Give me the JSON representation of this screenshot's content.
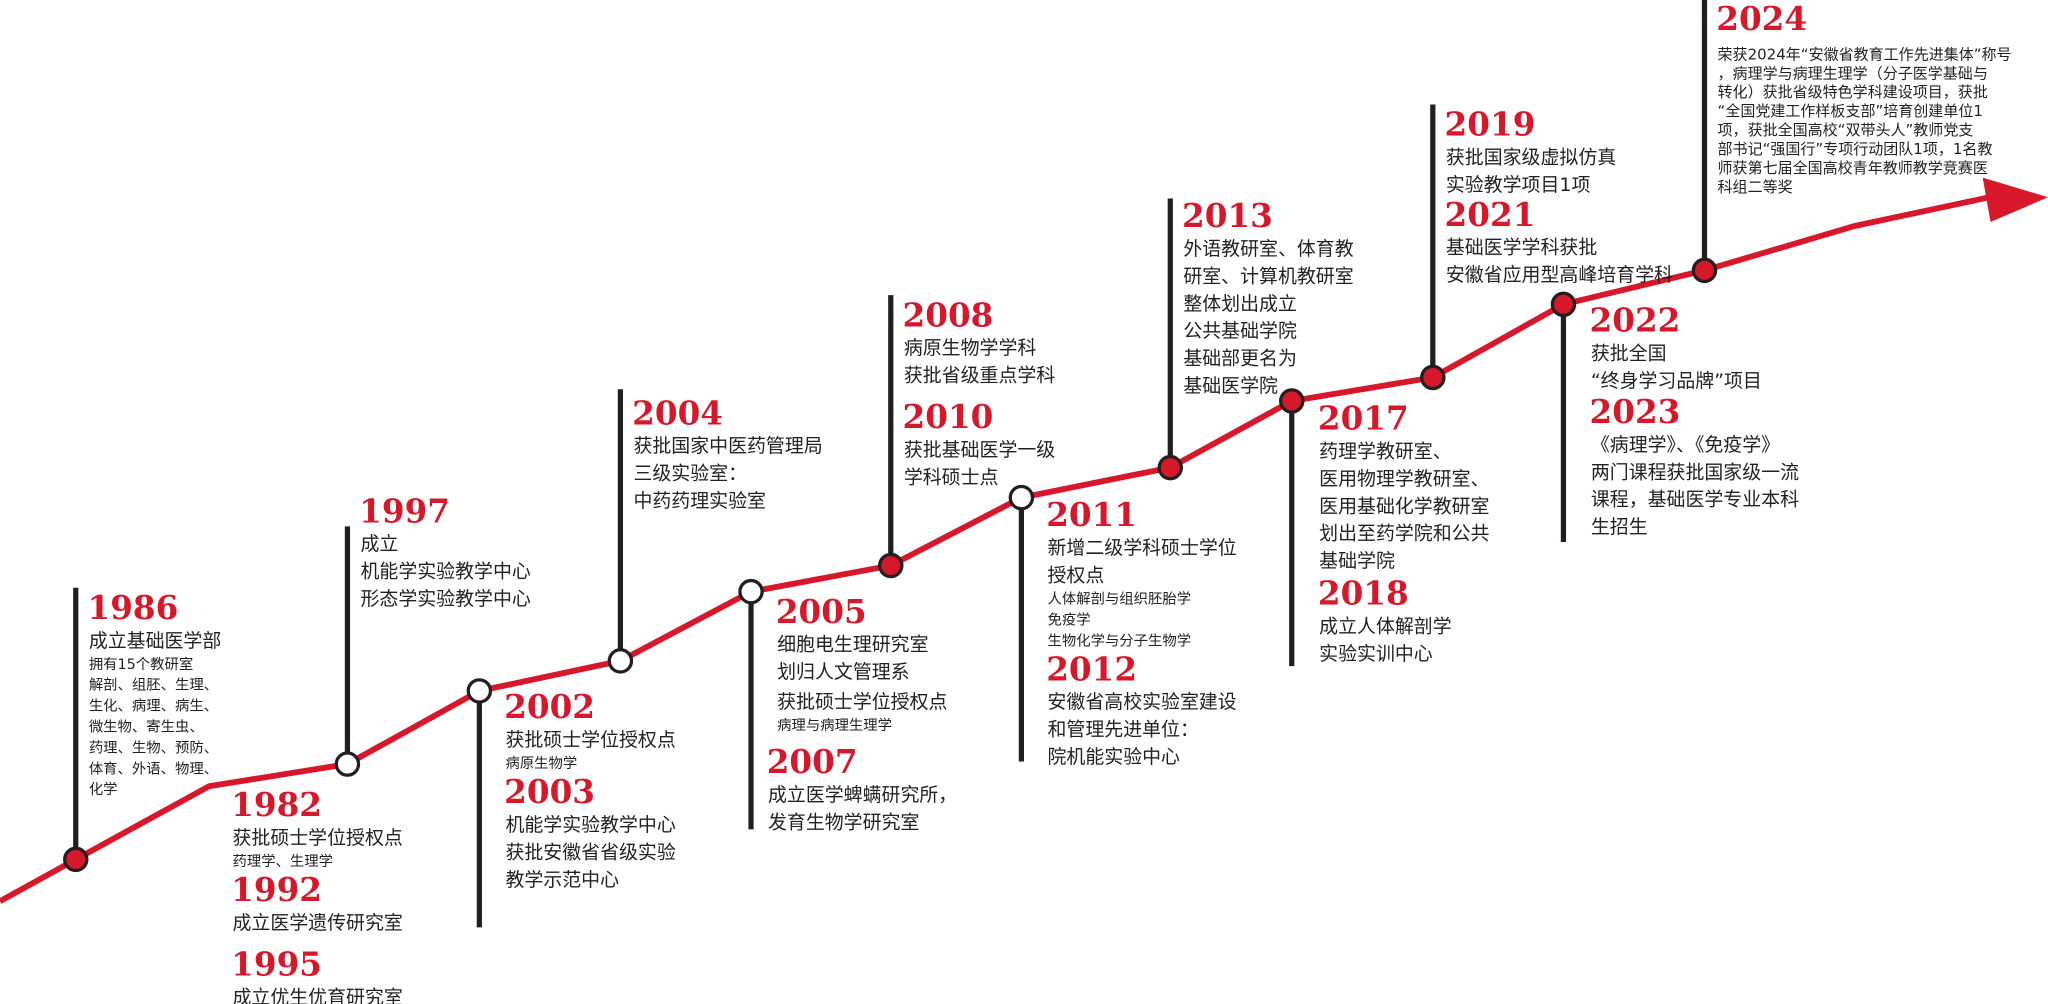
{
  "groups": [
    {
      "entries": [
        {
          "year": "1986",
          "text": [
            "成立基础医学部"
          ],
          "note": [
            "拥有15个教研室",
            "解剖、组胚、生理、",
            "生化、病理、病生、",
            "微生物、寄生虫、",
            "药理、生物、预防、",
            "体育、外语、物理、",
            "化学"
          ]
        }
      ]
    },
    {
      "entries": [
        {
          "year": "1982",
          "text": [
            "获批硕士学位授权点"
          ],
          "note": [
            "药理学、生理学"
          ]
        },
        {
          "year": "1992",
          "text": [
            "成立医学遗传研究室"
          ]
        },
        {
          "year": "1995",
          "text": [
            "成立优生优育研究室"
          ]
        }
      ]
    },
    {
      "entries": [
        {
          "year": "1997",
          "text": [
            "成立",
            "机能学实验教学中心",
            "形态学实验教学中心"
          ]
        }
      ]
    },
    {
      "entries": [
        {
          "year": "2002",
          "text": [
            "获批硕士学位授权点"
          ],
          "note": [
            "病原生物学"
          ]
        },
        {
          "year": "2003",
          "text": [
            "机能学实验教学中心",
            "获批安徽省省级实验",
            "教学示范中心"
          ]
        }
      ]
    },
    {
      "entries": [
        {
          "year": "2004",
          "text": [
            "获批国家中医药管理局",
            "三级实验室：",
            "中药药理实验室"
          ]
        }
      ]
    },
    {
      "entries": [
        {
          "year": "2005",
          "text": [
            "细胞电生理研究室",
            "划归人文管理系"
          ]
        },
        {
          "text": [
            "获批硕士学位授权点"
          ],
          "note": [
            "病理与病理生理学"
          ]
        },
        {
          "year": "2007",
          "text": [
            "成立医学蜱螨研究所，",
            "发育生物学研究室"
          ]
        }
      ]
    },
    {
      "entries": [
        {
          "year": "2008",
          "text": [
            "病原生物学学科",
            "获批省级重点学科"
          ]
        },
        {
          "year": "2010",
          "text": [
            "获批基础医学一级",
            "学科硕士点"
          ]
        }
      ]
    },
    {
      "entries": [
        {
          "year": "2011",
          "text": [
            "新增二级学科硕士学位",
            "授权点"
          ],
          "note": [
            "人体解剖与组织胚胎学",
            "免疫学",
            "生物化学与分子生物学"
          ]
        },
        {
          "year": "2012",
          "text": [
            "安徽省高校实验室建设",
            "和管理先进单位：",
            "院机能实验中心"
          ]
        }
      ]
    },
    {
      "entries": [
        {
          "year": "2013",
          "text": [
            "外语教研室、体育教",
            "研室、计算机教研室",
            "整体划出成立",
            "公共基础学院",
            "基础部更名为",
            "基础医学院"
          ]
        }
      ]
    },
    {
      "entries": [
        {
          "year": "2017",
          "text": [
            "药理学教研室、",
            "医用物理学教研室、",
            "医用基础化学教研室",
            "划出至药学院和公共",
            "基础学院"
          ]
        },
        {
          "year": "2018",
          "text": [
            "成立人体解剖学",
            "实验实训中心"
          ]
        }
      ]
    },
    {
      "entries": [
        {
          "year": "2019",
          "text": [
            "获批国家级虚拟仿真",
            "实验教学项目1项"
          ]
        },
        {
          "year": "2021",
          "text": [
            "基础医学学科获批",
            "安徽省应用型高峰培育学科"
          ]
        }
      ]
    },
    {
      "entries": [
        {
          "year": "2022",
          "text": [
            "获批全国",
            "“终身学习品牌”项目"
          ]
        },
        {
          "year": "2023",
          "text": [
            "《病理学》、《免疫学》",
            "两门课程获批国家级一流",
            "课程，基础医学专业本科",
            "生招生"
          ]
        }
      ]
    },
    {
      "entries": [
        {
          "year": "2024",
          "note": [
            "荣获2024年“安徽省教育工作先进集体”称号",
            "，病理学与病理生理学（分子医学基础与",
            "转化）获批省级特色学科建设项目，获批",
            "“全国党建工作样板支部”培育创建单位1",
            "项，获批全国高校“双带头人”教师党支",
            "部书记“强国行”专项行动团队1项，1名教",
            "师获第七届全国高校青年教师教学竞赛医",
            "科组二等奖"
          ]
        }
      ]
    }
  ]
}
